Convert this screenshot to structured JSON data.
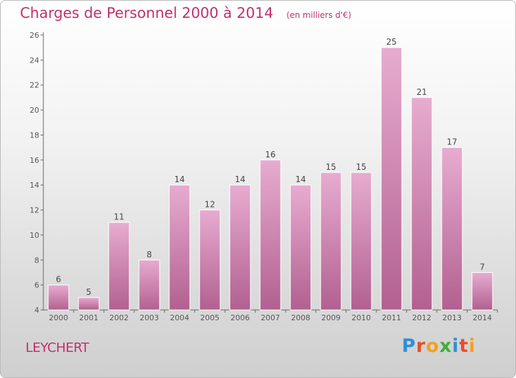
{
  "header": {
    "title": "Charges de Personnel 2000 à 2014",
    "unit": "(en milliers d'€)"
  },
  "commune": "LEYCHERT",
  "logo": {
    "text": "Proxiti",
    "letter_colors": [
      "#2e8fd8",
      "#e94c2a",
      "#f2a122",
      "#3cb03c",
      "#2e8fd8",
      "#e94c2a",
      "#f2a122"
    ]
  },
  "colors": {
    "title": "#c0306e",
    "bar_top": "#e7acd0",
    "bar_bottom": "#b26090"
  },
  "chart_data": {
    "type": "bar",
    "title": "Charges de Personnel 2000 à 2014",
    "xlabel": "",
    "ylabel": "",
    "categories": [
      "2000",
      "2001",
      "2002",
      "2003",
      "2004",
      "2005",
      "2006",
      "2007",
      "2008",
      "2009",
      "2010",
      "2011",
      "2012",
      "2013",
      "2014"
    ],
    "values": [
      6,
      5,
      11,
      8,
      14,
      12,
      14,
      16,
      14,
      15,
      15,
      25,
      21,
      17,
      7
    ],
    "ylim": [
      4,
      26
    ],
    "yticks": [
      4,
      6,
      8,
      10,
      12,
      14,
      16,
      18,
      20,
      22,
      24,
      26
    ],
    "grid": false,
    "data_labels": true
  }
}
